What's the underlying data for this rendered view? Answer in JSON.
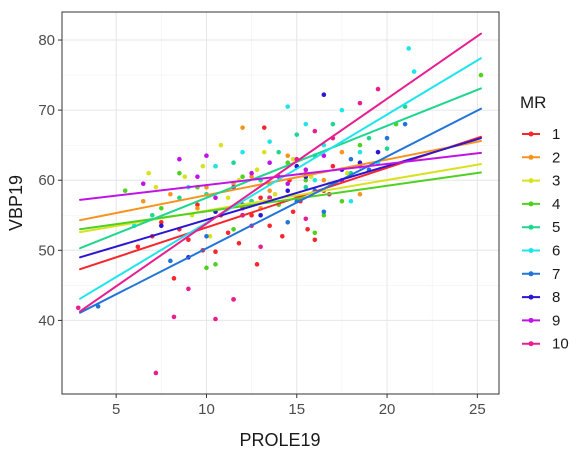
{
  "chart_data": {
    "type": "scatter",
    "xlabel": "PROLE19",
    "ylabel": "VBP19",
    "xlim": [
      2,
      26.2
    ],
    "ylim": [
      29.5,
      84
    ],
    "xticks": [
      5,
      10,
      15,
      20,
      25
    ],
    "yticks": [
      40,
      50,
      60,
      70,
      80
    ],
    "xtick_labels": [
      "5",
      "10",
      "15",
      "20",
      "25"
    ],
    "ytick_labels": [
      "40",
      "50",
      "60",
      "70",
      "80"
    ],
    "grid": true,
    "legend": {
      "title": "MR",
      "position": "right"
    },
    "series": [
      {
        "name": "1",
        "color": "#f8262d",
        "line": [
          [
            3,
            47.3
          ],
          [
            25.2,
            66.2
          ]
        ],
        "points": [
          [
            6.2,
            50.5
          ],
          [
            7.0,
            52.0
          ],
          [
            8.2,
            46.0
          ],
          [
            9.0,
            51.5
          ],
          [
            9.8,
            50.0
          ],
          [
            10.5,
            49.8
          ],
          [
            11.2,
            52.5
          ],
          [
            11.5,
            43.0
          ],
          [
            12.0,
            56.0
          ],
          [
            12.5,
            55.0
          ],
          [
            13.0,
            57.5
          ],
          [
            13.5,
            53.5
          ],
          [
            14.2,
            52.0
          ],
          [
            14.6,
            60.0
          ],
          [
            15.2,
            57.0
          ],
          [
            15.6,
            53.0
          ],
          [
            16.0,
            51.5
          ],
          [
            16.5,
            58.5
          ],
          [
            17.0,
            62.0
          ],
          [
            7.5,
            54.0
          ],
          [
            8.5,
            53.0
          ],
          [
            12.8,
            48.0
          ],
          [
            13.2,
            67.5
          ],
          [
            10.8,
            55.0
          ],
          [
            14.8,
            55.5
          ],
          [
            11.8,
            51.0
          ],
          [
            9.5,
            56.5
          ]
        ]
      },
      {
        "name": "2",
        "color": "#f7941d",
        "line": [
          [
            3,
            54.3
          ],
          [
            25.2,
            65.6
          ]
        ],
        "points": [
          [
            6.5,
            57.0
          ],
          [
            8.0,
            58.0
          ],
          [
            9.5,
            56.0
          ],
          [
            10.5,
            62.0
          ],
          [
            11.5,
            59.5
          ],
          [
            12.5,
            60.5
          ],
          [
            13.5,
            58.5
          ],
          [
            14.5,
            63.5
          ],
          [
            15.5,
            61.0
          ],
          [
            16.5,
            60.0
          ],
          [
            17.5,
            64.0
          ],
          [
            18.5,
            58.0
          ],
          [
            10.0,
            59.0
          ],
          [
            13.0,
            56.0
          ],
          [
            15.0,
            57.5
          ],
          [
            12.0,
            67.5
          ]
        ]
      },
      {
        "name": "3",
        "color": "#d9e21f",
        "line": [
          [
            3,
            52.6
          ],
          [
            25.2,
            62.3
          ]
        ],
        "points": [
          [
            6.8,
            61.0
          ],
          [
            7.2,
            59.0
          ],
          [
            8.8,
            60.5
          ],
          [
            9.8,
            62.0
          ],
          [
            10.8,
            65.0
          ],
          [
            11.8,
            60.0
          ],
          [
            12.8,
            61.5
          ],
          [
            13.8,
            58.0
          ],
          [
            14.8,
            63.0
          ],
          [
            15.8,
            60.5
          ],
          [
            16.8,
            59.5
          ],
          [
            17.8,
            61.0
          ],
          [
            9.2,
            55.0
          ],
          [
            11.2,
            57.5
          ],
          [
            13.2,
            64.0
          ],
          [
            10.2,
            52.0
          ]
        ]
      },
      {
        "name": "4",
        "color": "#4fd11f",
        "line": [
          [
            3,
            53.0
          ],
          [
            25.2,
            61.1
          ]
        ],
        "points": [
          [
            5.5,
            58.5
          ],
          [
            7.5,
            56.0
          ],
          [
            8.5,
            61.0
          ],
          [
            9.5,
            59.0
          ],
          [
            10.5,
            48.0
          ],
          [
            11.5,
            53.0
          ],
          [
            12.5,
            57.0
          ],
          [
            13.5,
            59.5
          ],
          [
            14.5,
            62.5
          ],
          [
            15.5,
            60.0
          ],
          [
            16.5,
            55.0
          ],
          [
            17.5,
            57.0
          ],
          [
            18.5,
            65.0
          ],
          [
            20.5,
            68.0
          ],
          [
            25.2,
            75.0
          ],
          [
            10.0,
            47.5
          ],
          [
            12.0,
            60.5
          ],
          [
            14.0,
            56.5
          ],
          [
            16.0,
            52.5
          ]
        ]
      },
      {
        "name": "5",
        "color": "#1fd68f",
        "line": [
          [
            3,
            50.3
          ],
          [
            25.2,
            73.1
          ]
        ],
        "points": [
          [
            7.0,
            55.0
          ],
          [
            8.5,
            57.5
          ],
          [
            10.0,
            58.0
          ],
          [
            11.5,
            62.5
          ],
          [
            13.0,
            60.0
          ],
          [
            14.0,
            64.0
          ],
          [
            15.0,
            66.5
          ],
          [
            16.0,
            63.5
          ],
          [
            17.0,
            68.0
          ],
          [
            18.0,
            61.0
          ],
          [
            19.0,
            66.0
          ],
          [
            20.0,
            64.5
          ],
          [
            21.0,
            70.5
          ],
          [
            12.5,
            57.0
          ],
          [
            15.5,
            59.0
          ]
        ]
      },
      {
        "name": "6",
        "color": "#1fe5ea",
        "line": [
          [
            3,
            43.1
          ],
          [
            25.2,
            77.4
          ]
        ],
        "points": [
          [
            6.0,
            53.5
          ],
          [
            9.0,
            59.0
          ],
          [
            10.5,
            62.0
          ],
          [
            12.0,
            64.0
          ],
          [
            13.5,
            65.5
          ],
          [
            14.5,
            70.5
          ],
          [
            15.5,
            68.0
          ],
          [
            16.5,
            65.0
          ],
          [
            17.5,
            70.0
          ],
          [
            18.5,
            64.0
          ],
          [
            19.5,
            62.5
          ],
          [
            21.2,
            78.8
          ],
          [
            21.5,
            75.5
          ],
          [
            16.0,
            60.0
          ],
          [
            18.0,
            57.0
          ]
        ]
      },
      {
        "name": "7",
        "color": "#2175d9",
        "line": [
          [
            3,
            41.1
          ],
          [
            25.2,
            70.2
          ]
        ],
        "points": [
          [
            4.0,
            42.0
          ],
          [
            8.0,
            48.5
          ],
          [
            10.0,
            52.0
          ],
          [
            12.0,
            55.0
          ],
          [
            13.5,
            57.5
          ],
          [
            15.0,
            57.0
          ],
          [
            16.0,
            58.5
          ],
          [
            17.0,
            59.5
          ],
          [
            18.0,
            63.0
          ],
          [
            19.0,
            61.5
          ],
          [
            20.0,
            66.0
          ],
          [
            14.5,
            54.0
          ],
          [
            16.5,
            55.5
          ],
          [
            21.0,
            68.0
          ]
        ]
      },
      {
        "name": "8",
        "color": "#2b16d3",
        "line": [
          [
            3,
            49.0
          ],
          [
            25.2,
            66.0
          ]
        ],
        "points": [
          [
            7.5,
            53.5
          ],
          [
            9.0,
            49.0
          ],
          [
            10.5,
            55.5
          ],
          [
            12.0,
            56.5
          ],
          [
            13.5,
            57.5
          ],
          [
            14.5,
            58.5
          ],
          [
            15.5,
            60.5
          ],
          [
            16.5,
            72.2
          ],
          [
            17.5,
            61.5
          ],
          [
            18.5,
            62.5
          ],
          [
            19.5,
            64.0
          ],
          [
            13.0,
            55.0
          ],
          [
            15.0,
            62.0
          ]
        ]
      },
      {
        "name": "9",
        "color": "#c014e6",
        "line": [
          [
            3,
            57.2
          ],
          [
            25.2,
            63.9
          ]
        ],
        "points": [
          [
            6.5,
            59.5
          ],
          [
            8.5,
            63.0
          ],
          [
            9.5,
            60.5
          ],
          [
            10.5,
            57.5
          ],
          [
            11.5,
            59.0
          ],
          [
            12.5,
            61.0
          ],
          [
            13.5,
            62.5
          ],
          [
            14.5,
            59.5
          ],
          [
            15.5,
            61.5
          ],
          [
            16.5,
            63.5
          ],
          [
            17.5,
            60.0
          ],
          [
            18.5,
            62.0
          ],
          [
            10.0,
            63.5
          ],
          [
            12.0,
            55.0
          ]
        ]
      },
      {
        "name": "10",
        "color": "#e81d8f",
        "line": [
          [
            3,
            41.3
          ],
          [
            25.2,
            80.9
          ]
        ],
        "points": [
          [
            2.9,
            41.8
          ],
          [
            7.2,
            32.5
          ],
          [
            8.2,
            40.5
          ],
          [
            10.5,
            40.2
          ],
          [
            11.5,
            43.0
          ],
          [
            12.5,
            53.5
          ],
          [
            13.5,
            57.5
          ],
          [
            14.0,
            60.5
          ],
          [
            15.0,
            63.0
          ],
          [
            16.0,
            67.0
          ],
          [
            17.0,
            66.0
          ],
          [
            18.5,
            71.0
          ],
          [
            19.5,
            73.0
          ],
          [
            15.5,
            54.5
          ],
          [
            16.8,
            58.0
          ],
          [
            9.0,
            44.5
          ],
          [
            13.0,
            50.5
          ]
        ]
      }
    ]
  }
}
